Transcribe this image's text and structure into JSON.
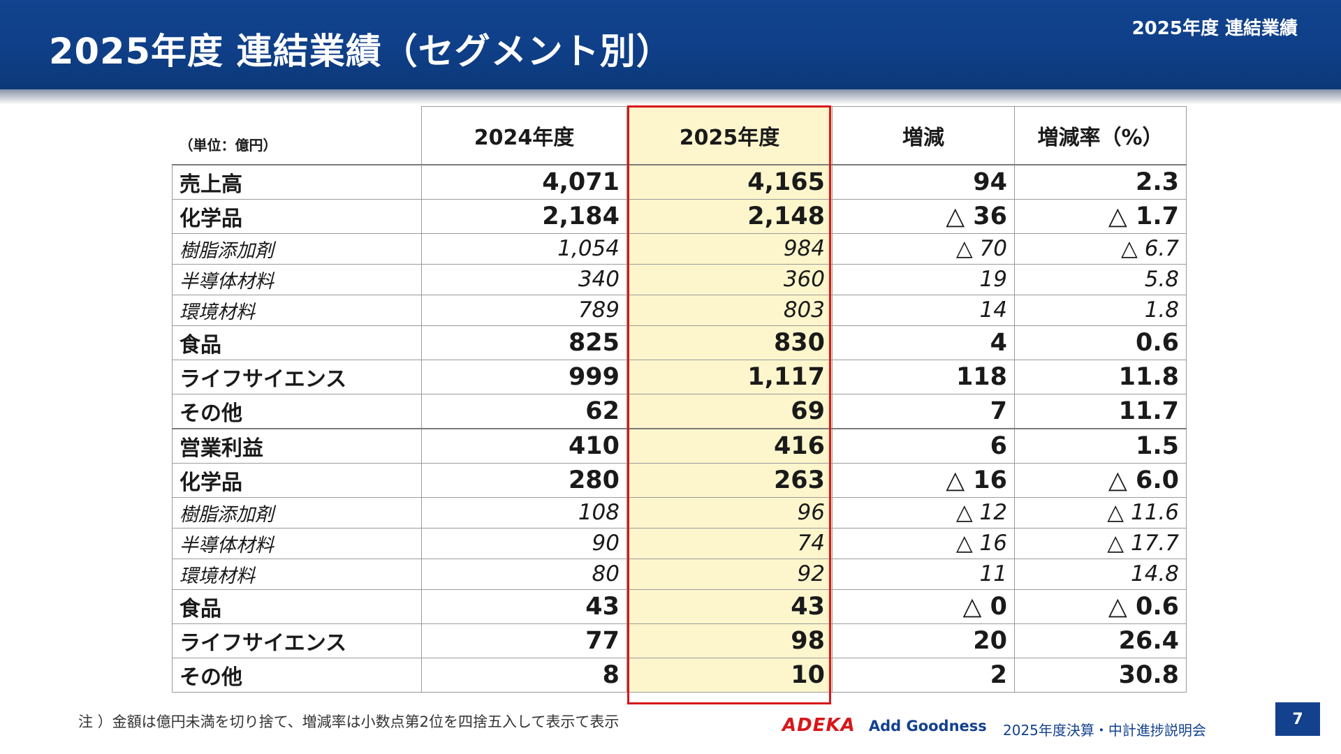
{
  "header": {
    "title": "2025年度 連結業績（セグメント別）",
    "tag": "2025年度 連結業績"
  },
  "table": {
    "unit": "（単位：億円）",
    "columns": [
      "2024年度",
      "2025年度",
      "増減",
      "増減率（%）"
    ],
    "rows": [
      {
        "label": "売上高",
        "level": "main",
        "v2024": "4,071",
        "v2025": "4,165",
        "diff": "94",
        "rate": "2.3"
      },
      {
        "label": "化学品",
        "level": "seg",
        "v2024": "2,184",
        "v2025": "2,148",
        "diff": "△ 36",
        "rate": "△ 1.7"
      },
      {
        "label": "樹脂添加剤",
        "level": "sub",
        "v2024": "1,054",
        "v2025": "984",
        "diff": "△ 70",
        "rate": "△ 6.7"
      },
      {
        "label": "半導体材料",
        "level": "sub",
        "v2024": "340",
        "v2025": "360",
        "diff": "19",
        "rate": "5.8"
      },
      {
        "label": "環境材料",
        "level": "sub",
        "v2024": "789",
        "v2025": "803",
        "diff": "14",
        "rate": "1.8"
      },
      {
        "label": "食品",
        "level": "seg",
        "v2024": "825",
        "v2025": "830",
        "diff": "4",
        "rate": "0.6"
      },
      {
        "label": "ライフサイエンス",
        "level": "seg",
        "v2024": "999",
        "v2025": "1,117",
        "diff": "118",
        "rate": "11.8"
      },
      {
        "label": "その他",
        "level": "seg",
        "v2024": "62",
        "v2025": "69",
        "diff": "7",
        "rate": "11.7"
      },
      {
        "label": "営業利益",
        "level": "main",
        "v2024": "410",
        "v2025": "416",
        "diff": "6",
        "rate": "1.5"
      },
      {
        "label": "化学品",
        "level": "seg",
        "v2024": "280",
        "v2025": "263",
        "diff": "△ 16",
        "rate": "△ 6.0"
      },
      {
        "label": "樹脂添加剤",
        "level": "sub",
        "v2024": "108",
        "v2025": "96",
        "diff": "△ 12",
        "rate": "△ 11.6"
      },
      {
        "label": "半導体材料",
        "level": "sub",
        "v2024": "90",
        "v2025": "74",
        "diff": "△ 16",
        "rate": "△ 17.7"
      },
      {
        "label": "環境材料",
        "level": "sub",
        "v2024": "80",
        "v2025": "92",
        "diff": "11",
        "rate": "14.8"
      },
      {
        "label": "食品",
        "level": "seg",
        "v2024": "43",
        "v2025": "43",
        "diff": "△ 0",
        "rate": "△ 0.6"
      },
      {
        "label": "ライフサイエンス",
        "level": "seg",
        "v2024": "77",
        "v2025": "98",
        "diff": "20",
        "rate": "26.4"
      },
      {
        "label": "その他",
        "level": "seg",
        "v2024": "8",
        "v2025": "10",
        "diff": "2",
        "rate": "30.8"
      }
    ]
  },
  "footer": {
    "note": "注 ）金額は億円未満を切り捨て、増減率は小数点第2位を四捨五入して表示て表示",
    "logo": "ADEKA",
    "tagline": "Add Goodness",
    "event": "2025年度決算・中計進捗説明会",
    "page": "7"
  },
  "colors": {
    "header_blue": "#11438e",
    "highlight_red": "#d7171b",
    "highlight_fill": "#fdf6cc"
  }
}
